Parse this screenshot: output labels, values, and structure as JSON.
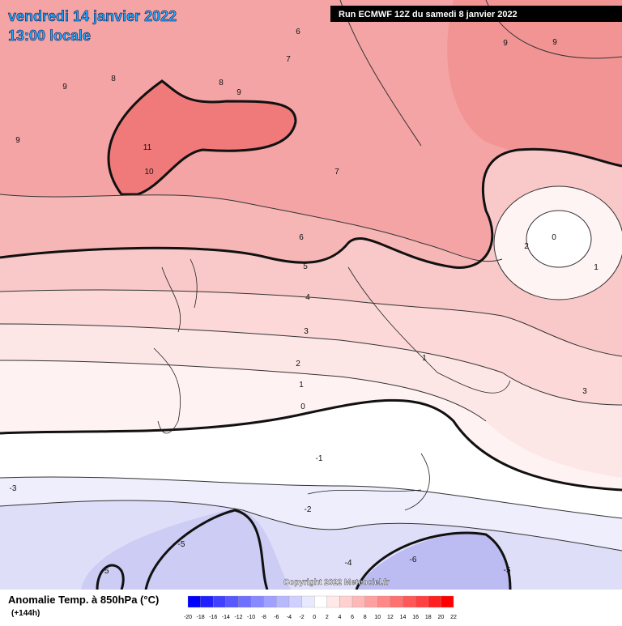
{
  "header": {
    "date": "vendredi 14 janvier 2022",
    "time": "13:00 locale",
    "run": "Run ECMWF 12Z du samedi 8 janvier 2022"
  },
  "copyright": "Copyright 2022 Meteociel.fr",
  "legend": {
    "title": "Anomalie Temp. à 850hPa (°C)",
    "lead": "(+144h)",
    "ticks": [
      -20,
      -18,
      -16,
      -14,
      -12,
      -10,
      -8,
      -6,
      -4,
      -2,
      0,
      2,
      4,
      6,
      8,
      10,
      12,
      14,
      16,
      18,
      20,
      22
    ],
    "colors": [
      "#0000ff",
      "#2020ff",
      "#4040ff",
      "#5858ff",
      "#7070ff",
      "#8888ff",
      "#a0a0ff",
      "#b8b8ff",
      "#d0d0ff",
      "#e8e8ff",
      "#ffffff",
      "#ffe8e8",
      "#ffd0d0",
      "#ffb8b8",
      "#ffa0a0",
      "#ff8888",
      "#ff7070",
      "#ff5858",
      "#ff4040",
      "#ff2020",
      "#ff0000"
    ]
  },
  "contour_labels": [
    "9",
    "9",
    "6",
    "8",
    "7",
    "9",
    "8",
    "9",
    "9",
    "11",
    "10",
    "7",
    "6",
    "5",
    "4",
    "3",
    "2",
    "1",
    "0",
    "-1",
    "-2",
    "-3",
    "-4",
    "-5",
    "-6",
    "-5",
    "-5",
    "2",
    "1",
    "0",
    "1",
    "3"
  ]
}
